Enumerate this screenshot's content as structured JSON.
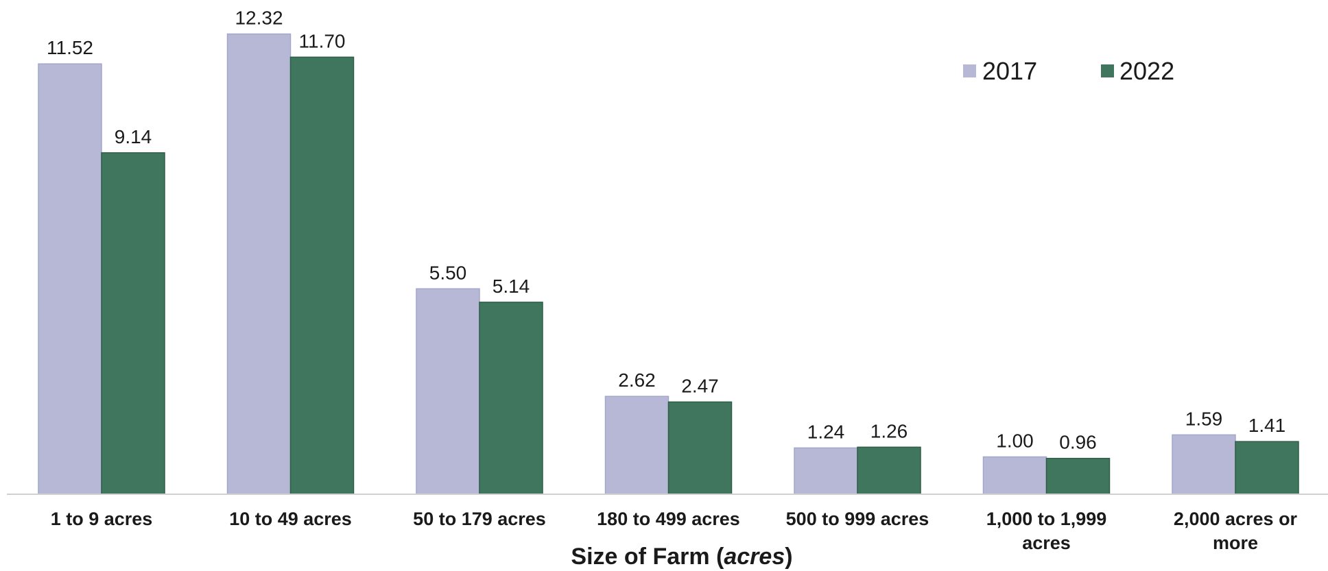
{
  "chart_data": {
    "type": "bar",
    "categories": [
      [
        "1 to 9 acres"
      ],
      [
        "10 to 49 acres"
      ],
      [
        "50 to 179 acres"
      ],
      [
        "180 to 499 acres"
      ],
      [
        "500 to 999 acres"
      ],
      [
        "1,000 to 1,999",
        "acres"
      ],
      [
        "2,000 acres or",
        "more"
      ]
    ],
    "series": [
      {
        "name": "2017",
        "color": "#b6b8d6",
        "values": [
          11.52,
          12.32,
          5.5,
          2.62,
          1.24,
          1.0,
          1.59
        ],
        "labels": [
          "11.52",
          "12.32",
          "5.50",
          "2.62",
          "1.24",
          "1.00",
          "1.59"
        ]
      },
      {
        "name": "2022",
        "color": "#41765e",
        "values": [
          9.14,
          11.7,
          5.14,
          2.47,
          1.26,
          0.96,
          1.41
        ],
        "labels": [
          "9.14",
          "11.70",
          "5.14",
          "2.47",
          "1.26",
          "0.96",
          "1.41"
        ]
      }
    ],
    "xlabel": {
      "prefix": "Size of Farm (",
      "emphasis": "acres",
      "suffix": ")"
    },
    "ylabel": "",
    "legend_position": "top-right",
    "grid": false
  }
}
